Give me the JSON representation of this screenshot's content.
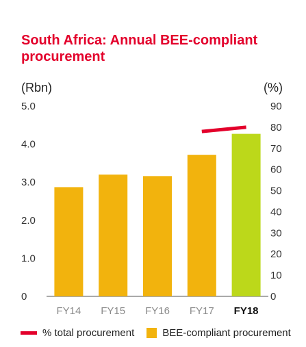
{
  "title": "South Africa: Annual BEE-compliant procurement",
  "left_unit": "(Rbn)",
  "right_unit": "(%)",
  "colors": {
    "title": "#e3002b",
    "bar": "#f2b30d",
    "bar_highlight": "#bcd81a",
    "line": "#e3002b",
    "axis": "#555555"
  },
  "legend": {
    "line_label": "% total procurement",
    "bar_label": "BEE-compliant procurement"
  },
  "chart_data": {
    "type": "bar",
    "categories": [
      "FY14",
      "FY15",
      "FY16",
      "FY17",
      "FY18"
    ],
    "highlight_category": "FY18",
    "series": [
      {
        "name": "BEE-compliant procurement",
        "axis": "left",
        "values": [
          2.87,
          3.2,
          3.16,
          3.72,
          4.27
        ]
      },
      {
        "name": "% total procurement",
        "axis": "right",
        "type": "line",
        "x": [
          "FY17",
          "FY18"
        ],
        "values": [
          78,
          80
        ]
      }
    ],
    "left_axis": {
      "label": "(Rbn)",
      "ylim": [
        0,
        5.0
      ],
      "ticks": [
        "0",
        "1.0",
        "2.0",
        "3.0",
        "4.0",
        "5.0"
      ]
    },
    "right_axis": {
      "label": "(%)",
      "ylim": [
        0,
        90
      ],
      "ticks": [
        "0",
        "10",
        "20",
        "30",
        "40",
        "50",
        "60",
        "70",
        "80",
        "90"
      ]
    },
    "grid": false,
    "legend_position": "bottom"
  }
}
